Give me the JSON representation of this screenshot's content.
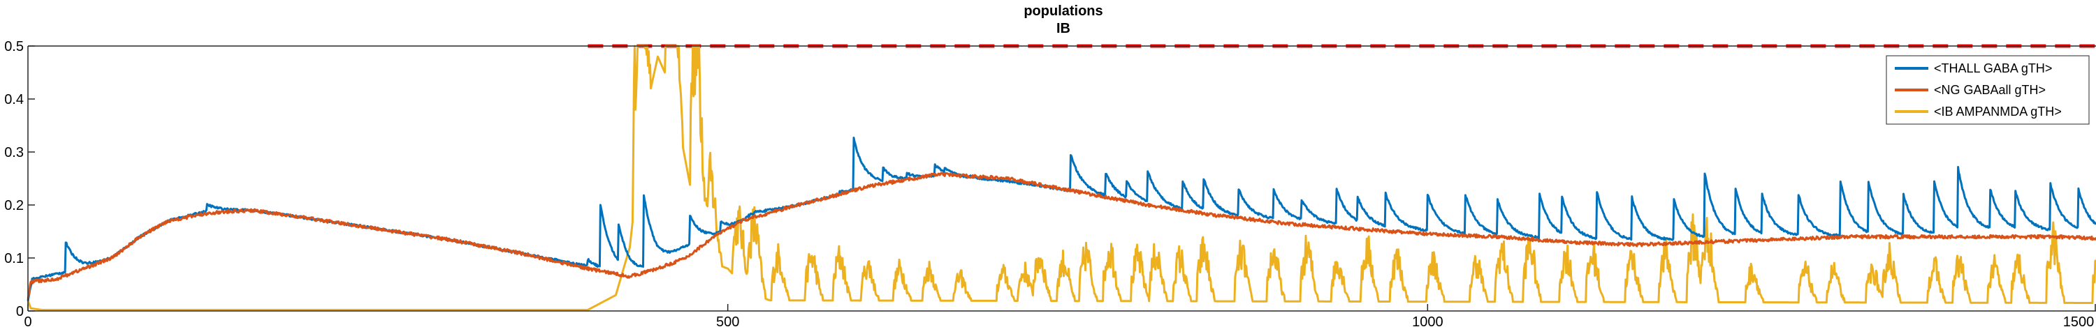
{
  "chart_data": {
    "type": "line",
    "title": [
      "populations",
      "IB"
    ],
    "xlabel": "",
    "ylabel": "",
    "xlim": [
      0,
      1500
    ],
    "ylim": [
      0,
      0.5
    ],
    "x_ticks": [
      0,
      500,
      1000,
      1500
    ],
    "y_ticks": [
      0,
      0.1,
      0.2,
      0.3,
      0.4,
      0.5
    ],
    "x_tick_labels": [
      "0",
      "500",
      "1000",
      "1500"
    ],
    "y_tick_labels": [
      "0",
      "0.1",
      "0.2",
      "0.3",
      "0.4",
      "0.5"
    ],
    "grid": false,
    "legend_position": "top-right",
    "reference_line": {
      "y": 0.5,
      "x_start": 400,
      "x_end": 1500,
      "color": "#ff0000",
      "style": "dashed"
    },
    "series": [
      {
        "name": "<THALL GABA gTH>",
        "color": "#0072bd",
        "baseline": [
          [
            0,
            0.02
          ],
          [
            3,
            0.06
          ],
          [
            20,
            0.07
          ],
          [
            40,
            0.08
          ],
          [
            60,
            0.1
          ],
          [
            80,
            0.14
          ],
          [
            100,
            0.17
          ],
          [
            130,
            0.19
          ],
          [
            160,
            0.19
          ],
          [
            200,
            0.175
          ],
          [
            250,
            0.155
          ],
          [
            300,
            0.135
          ],
          [
            350,
            0.11
          ],
          [
            400,
            0.085
          ],
          [
            430,
            0.065
          ],
          [
            450,
            0.08
          ],
          [
            470,
            0.12
          ],
          [
            500,
            0.15
          ],
          [
            520,
            0.185
          ],
          [
            550,
            0.2
          ],
          [
            580,
            0.22
          ],
          [
            600,
            0.235
          ],
          [
            650,
            0.255
          ],
          [
            700,
            0.245
          ],
          [
            750,
            0.225
          ],
          [
            800,
            0.2
          ],
          [
            850,
            0.18
          ],
          [
            900,
            0.17
          ],
          [
            950,
            0.16
          ],
          [
            1000,
            0.15
          ],
          [
            1050,
            0.14
          ],
          [
            1100,
            0.135
          ],
          [
            1150,
            0.13
          ],
          [
            1200,
            0.135
          ],
          [
            1250,
            0.14
          ],
          [
            1300,
            0.14
          ],
          [
            1350,
            0.14
          ],
          [
            1400,
            0.15
          ],
          [
            1450,
            0.15
          ],
          [
            1500,
            0.145
          ]
        ],
        "spikes": [
          [
            27,
            0.13
          ],
          [
            108,
            0.165
          ],
          [
            128,
            0.2
          ],
          [
            160,
            0.19
          ],
          [
            175,
            0.185
          ],
          [
            192,
            0.178
          ],
          [
            210,
            0.17
          ],
          [
            220,
            0.163
          ],
          [
            250,
            0.15
          ],
          [
            300,
            0.13
          ],
          [
            400,
            0.097
          ],
          [
            409,
            0.2
          ],
          [
            422,
            0.165
          ],
          [
            440,
            0.22
          ],
          [
            473,
            0.18
          ],
          [
            495,
            0.17
          ],
          [
            515,
            0.18
          ],
          [
            530,
            0.19
          ],
          [
            580,
            0.225
          ],
          [
            590,
            0.325
          ],
          [
            611,
            0.27
          ],
          [
            628,
            0.26
          ],
          [
            633,
            0.252
          ],
          [
            648,
            0.275
          ],
          [
            655,
            0.27
          ],
          [
            672,
            0.255
          ],
          [
            715,
            0.24
          ],
          [
            725,
            0.225
          ],
          [
            745,
            0.295
          ],
          [
            770,
            0.26
          ],
          [
            785,
            0.245
          ],
          [
            800,
            0.265
          ],
          [
            825,
            0.245
          ],
          [
            840,
            0.25
          ],
          [
            865,
            0.23
          ],
          [
            890,
            0.23
          ],
          [
            910,
            0.21
          ],
          [
            935,
            0.23
          ],
          [
            950,
            0.215
          ],
          [
            970,
            0.222
          ],
          [
            1000,
            0.22
          ],
          [
            1027,
            0.22
          ],
          [
            1050,
            0.21
          ],
          [
            1080,
            0.22
          ],
          [
            1096,
            0.215
          ],
          [
            1121,
            0.225
          ],
          [
            1146,
            0.215
          ],
          [
            1176,
            0.21
          ],
          [
            1198,
            0.26
          ],
          [
            1220,
            0.23
          ],
          [
            1239,
            0.22
          ],
          [
            1265,
            0.22
          ],
          [
            1295,
            0.245
          ],
          [
            1315,
            0.245
          ],
          [
            1340,
            0.22
          ],
          [
            1362,
            0.245
          ],
          [
            1379,
            0.27
          ],
          [
            1402,
            0.23
          ],
          [
            1420,
            0.225
          ],
          [
            1445,
            0.24
          ],
          [
            1465,
            0.23
          ],
          [
            1490,
            0.195
          ]
        ],
        "decay": 8
      },
      {
        "name": "<NG GABAall gTH>",
        "color": "#d95319",
        "baseline": [
          [
            0,
            0.02
          ],
          [
            2,
            0.055
          ],
          [
            20,
            0.06
          ],
          [
            40,
            0.08
          ],
          [
            60,
            0.1
          ],
          [
            80,
            0.14
          ],
          [
            100,
            0.17
          ],
          [
            130,
            0.185
          ],
          [
            160,
            0.19
          ],
          [
            200,
            0.175
          ],
          [
            250,
            0.155
          ],
          [
            300,
            0.135
          ],
          [
            350,
            0.11
          ],
          [
            400,
            0.08
          ],
          [
            430,
            0.065
          ],
          [
            450,
            0.08
          ],
          [
            470,
            0.1
          ],
          [
            490,
            0.14
          ],
          [
            510,
            0.17
          ],
          [
            550,
            0.2
          ],
          [
            580,
            0.22
          ],
          [
            600,
            0.235
          ],
          [
            650,
            0.258
          ],
          [
            700,
            0.25
          ],
          [
            750,
            0.225
          ],
          [
            800,
            0.2
          ],
          [
            850,
            0.18
          ],
          [
            900,
            0.165
          ],
          [
            950,
            0.155
          ],
          [
            1000,
            0.145
          ],
          [
            1050,
            0.14
          ],
          [
            1100,
            0.13
          ],
          [
            1150,
            0.125
          ],
          [
            1200,
            0.13
          ],
          [
            1250,
            0.135
          ],
          [
            1300,
            0.14
          ],
          [
            1350,
            0.14
          ],
          [
            1400,
            0.14
          ],
          [
            1450,
            0.14
          ],
          [
            1500,
            0.135
          ]
        ],
        "noise": 0.003
      },
      {
        "name": "<IB AMPANMDA gTH>",
        "color": "#edb120",
        "baseline": [
          [
            0,
            0.02
          ],
          [
            2,
            0.005
          ],
          [
            10,
            0.002
          ],
          [
            400,
            0.002
          ],
          [
            420,
            0.03
          ],
          [
            430,
            0.12
          ],
          [
            440,
            0.36
          ],
          [
            450,
            0.48
          ],
          [
            460,
            0.42
          ],
          [
            470,
            0.28
          ],
          [
            480,
            0.14
          ],
          [
            490,
            0.09
          ],
          [
            500,
            0.08
          ],
          [
            510,
            0.05
          ],
          [
            520,
            0.03
          ],
          [
            530,
            0.02
          ],
          [
            1500,
            0.015
          ]
        ],
        "bursts": [
          [
            437,
            0.5
          ],
          [
            460,
            0.5
          ],
          [
            478,
            0.5
          ],
          [
            488,
            0.2
          ],
          [
            508,
            0.15
          ],
          [
            519,
            0.175
          ],
          [
            536,
            0.11
          ],
          [
            560,
            0.11
          ],
          [
            580,
            0.11
          ],
          [
            600,
            0.09
          ],
          [
            623,
            0.08
          ],
          [
            644,
            0.08
          ],
          [
            666,
            0.06
          ],
          [
            697,
            0.07
          ],
          [
            712,
            0.075
          ],
          [
            723,
            0.11
          ],
          [
            740,
            0.1
          ],
          [
            756,
            0.12
          ],
          [
            773,
            0.13
          ],
          [
            793,
            0.11
          ],
          [
            806,
            0.12
          ],
          [
            823,
            0.11
          ],
          [
            840,
            0.13
          ],
          [
            867,
            0.12
          ],
          [
            890,
            0.12
          ],
          [
            914,
            0.13
          ],
          [
            936,
            0.1
          ],
          [
            957,
            0.13
          ],
          [
            978,
            0.11
          ],
          [
            1004,
            0.1
          ],
          [
            1035,
            0.1
          ],
          [
            1053,
            0.13
          ],
          [
            1073,
            0.14
          ],
          [
            1099,
            0.12
          ],
          [
            1118,
            0.12
          ],
          [
            1146,
            0.11
          ],
          [
            1170,
            0.12
          ],
          [
            1190,
            0.17
          ],
          [
            1200,
            0.17
          ],
          [
            1232,
            0.08
          ],
          [
            1270,
            0.08
          ],
          [
            1290,
            0.08
          ],
          [
            1318,
            0.08
          ],
          [
            1330,
            0.12
          ],
          [
            1362,
            0.09
          ],
          [
            1380,
            0.1
          ],
          [
            1405,
            0.09
          ],
          [
            1422,
            0.1
          ],
          [
            1447,
            0.16
          ],
          [
            1480,
            0.12
          ]
        ],
        "burst_width": 5
      }
    ]
  }
}
